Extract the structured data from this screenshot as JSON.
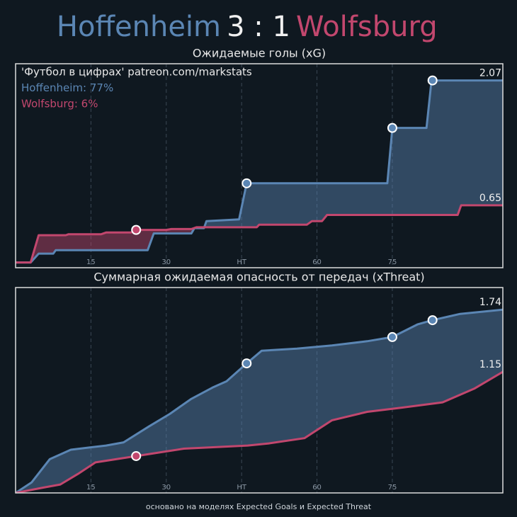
{
  "header": {
    "home": "Hoffenheim",
    "score": "3 : 1",
    "away": "Wolfsburg"
  },
  "footer": "основано на моделях Expected Goals и Expected Threat",
  "chart_data": [
    {
      "type": "line",
      "title": "Ожидаемые голы (xG)",
      "annotations": [
        {
          "text": "'Футбол в цифрах' patreon.com/markstats",
          "color": "#e8e8e8"
        },
        {
          "text": "Hoffenheim: 77%",
          "color": "#5b86b4"
        },
        {
          "text": "Wolfsburg: 6%",
          "color": "#c2476e"
        }
      ],
      "xlim": [
        0,
        97
      ],
      "ylim": [
        -0.06,
        2.26
      ],
      "xticks": [
        15,
        30,
        {
          "value": 45,
          "label": "HT"
        },
        60,
        75
      ],
      "grid": true,
      "series": [
        {
          "name": "Hoffenheim",
          "color": "#5b86b4",
          "x": [
            0,
            3,
            4.6,
            7.5,
            8,
            26.3,
            27.5,
            35,
            35.6,
            37.5,
            38,
            44.5,
            46,
            74,
            75,
            81.8,
            82.8,
            97
          ],
          "values": [
            0,
            0,
            0.1,
            0.1,
            0.14,
            0.14,
            0.33,
            0.33,
            0.39,
            0.39,
            0.47,
            0.49,
            0.9,
            0.9,
            1.53,
            1.53,
            2.07,
            2.07
          ],
          "markers": [
            {
              "x": 46,
              "y": 0.9
            },
            {
              "x": 75,
              "y": 1.53
            },
            {
              "x": 83,
              "y": 2.07
            }
          ]
        },
        {
          "name": "Wolfsburg",
          "color": "#c2476e",
          "x": [
            0,
            3,
            4.6,
            10,
            10.5,
            17,
            18,
            23,
            24,
            30,
            31,
            35,
            36,
            48,
            48.5,
            58,
            59,
            61,
            62,
            88,
            88.7,
            97
          ],
          "values": [
            0,
            0,
            0.31,
            0.31,
            0.32,
            0.32,
            0.34,
            0.34,
            0.37,
            0.37,
            0.38,
            0.38,
            0.4,
            0.4,
            0.43,
            0.43,
            0.47,
            0.47,
            0.54,
            0.54,
            0.65,
            0.65
          ],
          "markers": [
            {
              "x": 24,
              "y": 0.37
            }
          ]
        }
      ]
    },
    {
      "type": "line",
      "title": "Суммарная ожидаемая опасность от передач (xThreat)",
      "xlim": [
        0,
        97
      ],
      "ylim": [
        0,
        1.95
      ],
      "xticks": [
        15,
        30,
        {
          "value": 45,
          "label": "HT"
        },
        60,
        75
      ],
      "grid": true,
      "series": [
        {
          "name": "Hoffenheim",
          "color": "#5b86b4",
          "x": [
            0,
            3.2,
            6.8,
            11,
            18,
            21.5,
            26.5,
            30.7,
            34.9,
            39.2,
            42,
            46,
            49,
            56,
            63,
            70,
            75,
            80,
            83,
            88.5,
            97
          ],
          "values": [
            0,
            0.1,
            0.32,
            0.41,
            0.45,
            0.48,
            0.63,
            0.75,
            0.89,
            1.0,
            1.06,
            1.23,
            1.35,
            1.37,
            1.4,
            1.44,
            1.48,
            1.6,
            1.64,
            1.7,
            1.74
          ],
          "markers": [
            {
              "x": 46,
              "y": 1.23
            },
            {
              "x": 75,
              "y": 1.48
            },
            {
              "x": 83,
              "y": 1.64
            }
          ]
        },
        {
          "name": "Wolfsburg",
          "color": "#c2476e",
          "x": [
            0,
            5.4,
            8.9,
            12.4,
            15.9,
            24.1,
            33.5,
            46.2,
            50.4,
            57.5,
            63,
            70,
            77,
            85,
            91.3,
            97
          ],
          "values": [
            0,
            0.05,
            0.08,
            0.18,
            0.29,
            0.35,
            0.42,
            0.45,
            0.47,
            0.52,
            0.69,
            0.77,
            0.81,
            0.86,
            0.99,
            1.15
          ],
          "markers": [
            {
              "x": 24,
              "y": 0.35
            }
          ]
        }
      ]
    }
  ]
}
